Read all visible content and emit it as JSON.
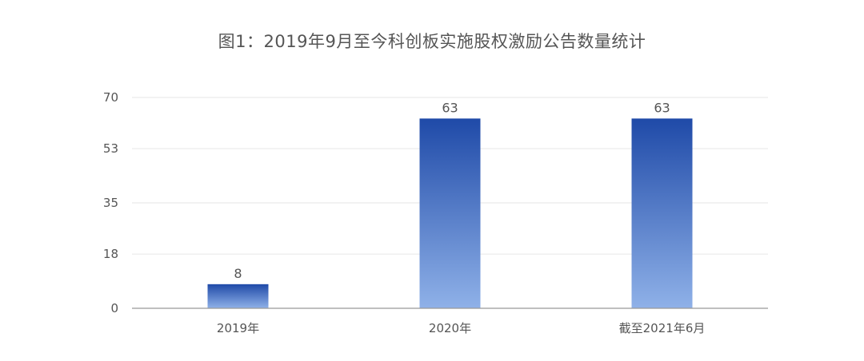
{
  "chart_data": {
    "type": "bar",
    "title": "图1：2019年9月至今科创板实施股权激励公告数量统计",
    "xlabel": "",
    "ylabel": "",
    "categories": [
      "2019年",
      "2020年",
      "截至2021年6月"
    ],
    "values": [
      8,
      63,
      63
    ],
    "data_labels": [
      "8",
      "63",
      "63"
    ],
    "yticks": [
      0,
      18,
      35,
      53,
      70
    ],
    "ylim": [
      0,
      70
    ],
    "grid": true,
    "legend": "none",
    "colors": {
      "bar_top": "#1f4aa8",
      "bar_bottom": "#8fb1e8",
      "grid": "#e6e6e6",
      "axis": "#999999",
      "tick_text": "#555555",
      "label_text": "#555555"
    }
  }
}
